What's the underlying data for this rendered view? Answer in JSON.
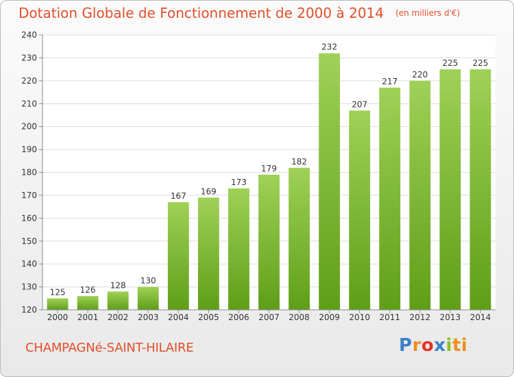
{
  "title": "Dotation Globale de Fonctionnement de 2000 à 2014",
  "unit_note": "(en milliers d'€)",
  "commune": "CHAMPAGNé-SAINT-HILAIRE",
  "logo": {
    "text": "Proxiti",
    "letters": [
      "P",
      "r",
      "o",
      "x",
      "i",
      "ti"
    ]
  },
  "colors": {
    "title": "#e24f2b",
    "bar_light": "#9fd156",
    "bar_dark": "#5f9e18"
  },
  "chart_data": {
    "type": "bar",
    "categories": [
      "2000",
      "2001",
      "2002",
      "2003",
      "2004",
      "2005",
      "2006",
      "2007",
      "2008",
      "2009",
      "2010",
      "2011",
      "2012",
      "2013",
      "2014"
    ],
    "values": [
      125,
      126,
      128,
      130,
      167,
      169,
      173,
      179,
      182,
      232,
      207,
      217,
      220,
      225,
      225
    ],
    "ylim": [
      120,
      240
    ],
    "yticks": [
      120,
      130,
      140,
      150,
      160,
      170,
      180,
      190,
      200,
      210,
      220,
      230,
      240
    ],
    "grid": true,
    "xlabel": "",
    "ylabel": ""
  }
}
